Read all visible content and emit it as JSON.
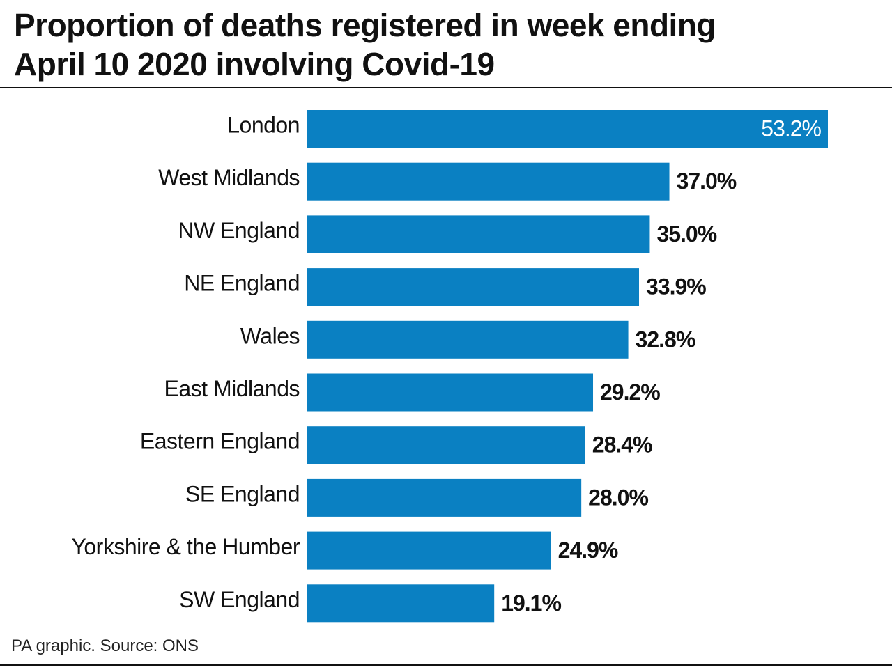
{
  "chart_data": {
    "type": "bar",
    "orientation": "horizontal",
    "title": "Proportion of deaths registered in week ending\nApril 10 2020 involving Covid-19",
    "categories": [
      "London",
      "West Midlands",
      "NW England",
      "NE England",
      "Wales",
      "East Midlands",
      "Eastern England",
      "SE England",
      "Yorkshire & the Humber",
      "SW England"
    ],
    "values": [
      53.2,
      37.0,
      35.0,
      33.9,
      32.8,
      29.2,
      28.4,
      28.0,
      24.9,
      19.1
    ],
    "value_labels": [
      "53.2%",
      "37.0%",
      "35.0%",
      "33.9%",
      "32.8%",
      "29.2%",
      "28.4%",
      "28.0%",
      "24.9%",
      "19.1%"
    ],
    "color": "#0a80c2",
    "source": "PA graphic. Source: ONS"
  }
}
